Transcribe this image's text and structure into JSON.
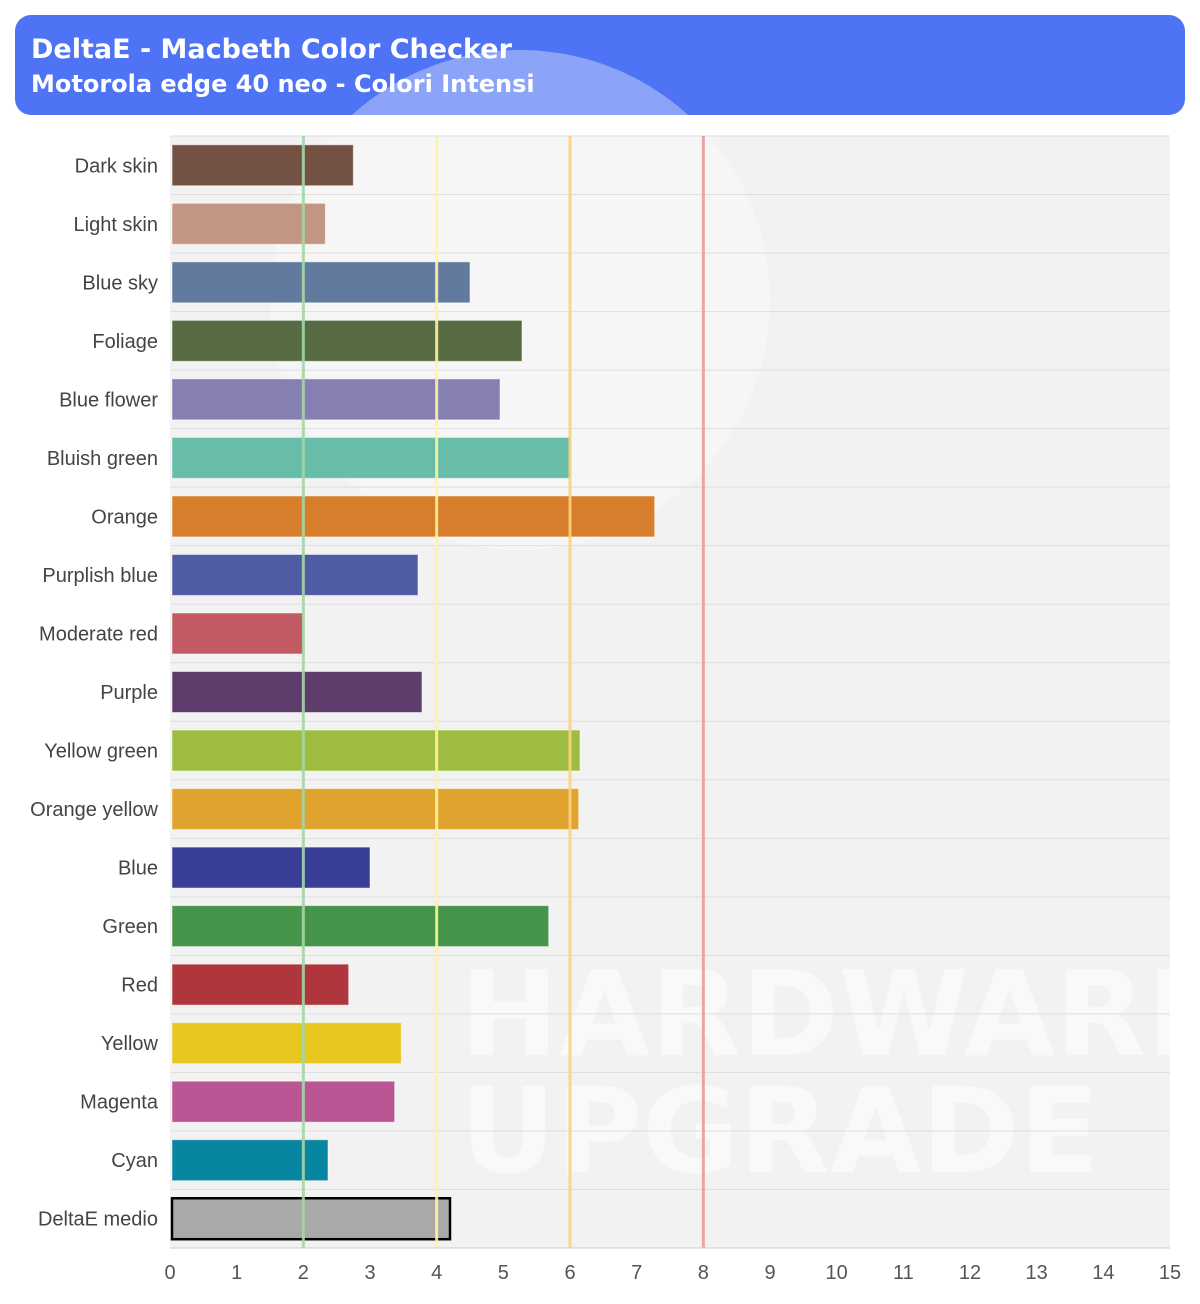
{
  "header": {
    "title": "DeltaE - Macbeth Color Checker",
    "subtitle": "Motorola edge 40 neo - Colori Intensi"
  },
  "watermark": {
    "line1": "HARDWARE",
    "line2": "UPGRADE"
  },
  "colors": {
    "header_bg": "#4e74f5",
    "plot_bg": "#f2f2f2",
    "grid": "#dedede"
  },
  "chart_data": {
    "type": "bar",
    "orientation": "horizontal",
    "categories": [
      "Dark skin",
      "Light skin",
      "Blue sky",
      "Foliage",
      "Blue flower",
      "Bluish green",
      "Orange",
      "Purplish blue",
      "Moderate red",
      "Purple",
      "Yellow green",
      "Orange yellow",
      "Blue",
      "Green",
      "Red",
      "Yellow",
      "Magenta",
      "Cyan",
      "DeltaE medio"
    ],
    "values": [
      2.75,
      2.33,
      4.5,
      5.28,
      4.95,
      6.02,
      7.27,
      3.72,
      2.0,
      3.78,
      6.15,
      6.13,
      3.0,
      5.68,
      2.68,
      3.47,
      3.37,
      2.37,
      4.2
    ],
    "bar_colors": [
      "#735244",
      "#c29682",
      "#627a9d",
      "#576c43",
      "#8580b1",
      "#67bdaa",
      "#d67e2c",
      "#505ba6",
      "#c15a63",
      "#5e3c6c",
      "#9dbc40",
      "#e0a32e",
      "#383d96",
      "#469449",
      "#af363c",
      "#e7c71f",
      "#bb5695",
      "#0885a1",
      "#a9a9a9"
    ],
    "xlim": [
      0,
      15
    ],
    "xticks": [
      "0",
      "1",
      "2",
      "3",
      "4",
      "5",
      "6",
      "7",
      "8",
      "9",
      "10",
      "11",
      "12",
      "13",
      "14",
      "15"
    ],
    "reference_lines": [
      {
        "x": 2,
        "color": "#a5d6a7"
      },
      {
        "x": 4,
        "color": "#fff59d"
      },
      {
        "x": 6,
        "color": "#ffd180"
      },
      {
        "x": 8,
        "color": "#ef9a9a"
      }
    ],
    "grid": true,
    "legend": "none"
  }
}
